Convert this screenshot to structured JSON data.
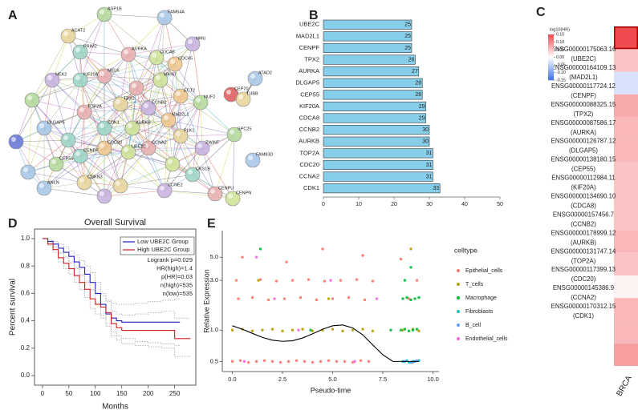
{
  "panel_labels": [
    "A",
    "B",
    "C",
    "D",
    "E"
  ],
  "network": {
    "nodes": [
      "ASP1B",
      "FAM64A",
      "ACAT2",
      "NMU",
      "PRIM2",
      "AURKA",
      "CDCA8",
      "CDC45",
      "CEP70",
      "ATAD2",
      "TUBB",
      "NEK2",
      "KIF20A",
      "MELK",
      "MKI67",
      "ECT2",
      "NUF2",
      "DLGAP5",
      "TPX2",
      "CCNB2",
      "CDK1",
      "TOP2A",
      "AURKB",
      "MAD2L1",
      "SPC25",
      "FAM83D",
      "PLK1",
      "ZWINT",
      "CENPF",
      "CCNA2",
      "UBE2C",
      "CDC20",
      "CEP55",
      "ANLN",
      "CDKN3",
      "CCNE2",
      "CKS1B",
      "CENPU",
      "CENPN"
    ]
  },
  "chart_data": [
    {
      "type": "bar",
      "orientation": "horizontal",
      "categories": [
        "UBE2C",
        "MAD2L1",
        "CENPF",
        "TPX2",
        "AURKA",
        "DLGAP5",
        "CEP55",
        "KIF20A",
        "CDCA8",
        "CCNB2",
        "AURKB",
        "TOP2A",
        "CDC20",
        "CCNA2",
        "CDK1"
      ],
      "values": [
        25,
        25,
        25,
        26,
        27,
        28,
        28,
        29,
        29,
        30,
        30,
        31,
        31,
        31,
        33
      ],
      "color": "#87ceeb",
      "xlim": [
        0,
        50
      ],
      "xticks": [
        0,
        10,
        20,
        30,
        40,
        50
      ]
    },
    {
      "type": "heatmap",
      "x": [
        "BRCA"
      ],
      "row_ids": [
        "ENSG00000175063.16",
        "ENSG00000164109.13",
        "ENSG00000117724.12",
        "ENSG00000088325.15",
        "ENSG00000087586.17",
        "ENSG00000126787.12",
        "ENSG00000138180.15",
        "ENSG00000112984.11",
        "ENSG00000134690.10",
        "ENSG00000157456.7",
        "ENSG00000178999.12",
        "ENSG00000131747.14",
        "ENSG00000117399.13",
        "ENSG00000145386.9",
        "ENSG00000170312.15"
      ],
      "categories": [
        "(UBE2C)",
        "(MAD2L1)",
        "(CENPF)",
        "(TPX2)",
        "(AURKA)",
        "(DLGAP5)",
        "(CEP55)",
        "(KIF20A)",
        "(CDCA8)",
        "(CCNB2)",
        "(AURKB)",
        "(TOP2A)",
        "(CDC20)",
        "(CCNA2)",
        "(CDK1)"
      ],
      "values": [
        0.15,
        0.05,
        -0.03,
        0.07,
        0.06,
        0.06,
        0.05,
        0.05,
        0.05,
        0.06,
        0.05,
        0.01,
        0.06,
        0.06,
        0.08
      ],
      "highlight_row": 0,
      "colorbar_label": "log10(HR)",
      "clim": [
        -0.15,
        0.15
      ],
      "cticks": [
        0.15,
        {
          "value": 0.1,
          "label": "0.10"
        },
        0.05,
        {
          "value": 0,
          "label": "0.00"
        },
        -0.05,
        {
          "value": -0.1,
          "label": "-0.10"
        },
        -0.15
      ],
      "low_color": "#3a6fe6",
      "mid_color": "#ffffff",
      "high_color": "#f04b4f"
    },
    {
      "type": "line",
      "step": true,
      "title": "Overall Survival",
      "xlabel": "Months",
      "ylabel": "Percent survival",
      "xlim": [
        -15,
        290
      ],
      "xticks": [
        0,
        50,
        100,
        150,
        200,
        250
      ],
      "ylim": [
        -0.07,
        1.07
      ],
      "yticks": [
        {
          "value": 0,
          "label": "0.0"
        },
        0.2,
        0.4,
        0.6,
        0.8,
        {
          "value": 1,
          "label": "1.0"
        }
      ],
      "legend": "upper right",
      "annotations": [
        "Logrank p=0.029",
        "HR(high)=1.4",
        "p(HR)=0.03",
        "n(high)=535",
        "n(low)=535"
      ],
      "series": [
        {
          "name": "Low UBE2C Group",
          "color": "#2020c0",
          "x": [
            0,
            10,
            20,
            30,
            40,
            50,
            60,
            70,
            80,
            90,
            100,
            110,
            120,
            130,
            140,
            150,
            175,
            200,
            225,
            250,
            260
          ],
          "values": [
            1,
            0.98,
            0.96,
            0.93,
            0.9,
            0.87,
            0.83,
            0.79,
            0.74,
            0.68,
            0.6,
            0.52,
            0.45,
            0.42,
            0.4,
            0.39,
            0.39,
            0.39,
            0.39,
            0.39,
            0.39
          ],
          "lower": [
            1,
            0.97,
            0.94,
            0.9,
            0.87,
            0.83,
            0.79,
            0.74,
            0.68,
            0.62,
            0.53,
            0.44,
            0.36,
            0.32,
            0.29,
            0.27,
            0.25,
            0.24,
            0.23,
            0.22,
            0.22
          ],
          "upper": [
            1,
            0.99,
            0.98,
            0.96,
            0.94,
            0.91,
            0.88,
            0.84,
            0.8,
            0.75,
            0.68,
            0.6,
            0.55,
            0.53,
            0.52,
            0.52,
            0.53,
            0.54,
            0.55,
            0.56,
            0.56
          ]
        },
        {
          "name": "High UBE2C Group",
          "color": "#d02020",
          "x": [
            0,
            10,
            20,
            30,
            40,
            50,
            60,
            70,
            80,
            90,
            100,
            110,
            120,
            130,
            140,
            150,
            175,
            200,
            225,
            250,
            280
          ],
          "values": [
            1,
            0.96,
            0.92,
            0.86,
            0.82,
            0.78,
            0.73,
            0.68,
            0.63,
            0.56,
            0.52,
            0.5,
            0.46,
            0.38,
            0.35,
            0.33,
            0.33,
            0.33,
            0.33,
            0.27,
            0.27
          ],
          "lower": [
            1,
            0.95,
            0.9,
            0.83,
            0.78,
            0.74,
            0.68,
            0.63,
            0.57,
            0.49,
            0.45,
            0.42,
            0.38,
            0.29,
            0.26,
            0.23,
            0.22,
            0.21,
            0.2,
            0.14,
            0.14
          ],
          "upper": [
            1,
            0.97,
            0.94,
            0.89,
            0.86,
            0.82,
            0.78,
            0.73,
            0.69,
            0.63,
            0.59,
            0.58,
            0.54,
            0.47,
            0.45,
            0.44,
            0.45,
            0.46,
            0.47,
            0.42,
            0.42
          ]
        }
      ]
    },
    {
      "type": "scatter",
      "xlabel": "Pseudo-time",
      "ylabel": "Relative Expression",
      "legend_title": "celltype",
      "log_y": true,
      "xlim": [
        -0.5,
        10.3
      ],
      "xticks": [
        {
          "value": 0,
          "label": "0.0"
        },
        2.5,
        {
          "value": 5,
          "label": "5.0"
        },
        7.5,
        {
          "value": 10,
          "label": "10.0"
        }
      ],
      "ylim": [
        0.4,
        9
      ],
      "yticks": [
        0.5,
        {
          "value": 1,
          "label": "1.0"
        },
        {
          "value": 3,
          "label": "3.0"
        },
        {
          "value": 5,
          "label": "5.0"
        }
      ],
      "series": [
        {
          "name": "Epithelial_cells",
          "color": "#F8766D",
          "x": [
            0,
            0.4,
            0.8,
            1.2,
            1.6,
            2,
            2.4,
            2.8,
            3.2,
            3.6,
            4,
            4.4,
            4.8,
            5.2,
            5.6,
            6,
            6.4,
            6.8,
            8.6,
            9,
            0.3,
            1,
            1.8,
            2.6,
            3.4,
            4.2,
            5,
            5.8,
            6.6,
            8.8,
            0.2,
            1.4,
            2.2,
            3,
            3.8,
            4.6,
            5.4,
            6.2,
            7,
            9.2,
            0.5,
            2.7,
            4.5,
            6.5,
            8.4
          ],
          "values": [
            0.5,
            0.51,
            0.49,
            0.5,
            0.51,
            0.5,
            0.49,
            0.5,
            0.51,
            0.5,
            0.49,
            0.5,
            0.51,
            0.5,
            0.5,
            0.49,
            0.51,
            0.5,
            0.5,
            0.49,
            2,
            2.05,
            1.95,
            2,
            2.05,
            1.95,
            2,
            2.05,
            1.95,
            2,
            3,
            3.05,
            2.95,
            3,
            3.05,
            2.95,
            3,
            3.05,
            2.95,
            3,
            5,
            4.5,
            6,
            5.2,
            4.8
          ]
        },
        {
          "name": "T_cells",
          "color": "#B79F00",
          "x": [
            0,
            0.5,
            1,
            1.5,
            2,
            2.5,
            3,
            3.5,
            4,
            4.5,
            5,
            5.5,
            6,
            6.5,
            7,
            8.5,
            9,
            9.3,
            1.3,
            4.8,
            8.9
          ],
          "values": [
            1,
            1.02,
            0.98,
            1,
            1.02,
            0.98,
            1,
            1.02,
            0.98,
            1,
            1.02,
            0.98,
            1,
            1.02,
            0.98,
            1,
            1.02,
            0.98,
            3,
            2,
            6
          ]
        },
        {
          "name": "Macrophage",
          "color": "#00BA38",
          "x": [
            8.4,
            8.6,
            8.8,
            9,
            9.2,
            8.5,
            8.7,
            8.9,
            9.1,
            9.3,
            1.4,
            3.9,
            8.6,
            8.9,
            7.9
          ],
          "values": [
            1,
            1.02,
            0.98,
            1,
            1.02,
            2,
            2.05,
            1.95,
            2,
            2.05,
            6,
            1,
            3,
            4,
            1
          ]
        },
        {
          "name": "Fibroblasts",
          "color": "#00BFC4",
          "x": [
            8.5,
            8.7,
            8.9,
            9.1,
            9.3,
            9,
            8.8
          ],
          "values": [
            0.5,
            0.51,
            0.49,
            0.5,
            0.51,
            0.5,
            0.49
          ]
        },
        {
          "name": "B_cell",
          "color": "#619CFF",
          "x": [
            8.6,
            8.9,
            9.2,
            9.1
          ],
          "values": [
            0.5,
            0.49,
            0.51,
            0.5
          ]
        },
        {
          "name": "Endothelial_cells",
          "color": "#F564E3",
          "x": [
            0.6,
            2.1,
            3.3,
            4.9,
            6.1,
            7.2,
            1.2
          ],
          "values": [
            0.5,
            2,
            1,
            3,
            0.5,
            2,
            5
          ]
        }
      ],
      "trend": {
        "color": "#000000",
        "x": [
          0,
          0.5,
          1,
          1.5,
          2,
          2.5,
          3,
          3.5,
          4,
          4.5,
          5,
          5.5,
          6,
          6.5,
          7,
          7.5,
          8,
          8.5,
          9,
          9.3
        ],
        "values": [
          1.1,
          1.02,
          0.93,
          0.85,
          0.8,
          0.78,
          0.79,
          0.84,
          0.92,
          1.02,
          1.1,
          1.12,
          1.05,
          0.9,
          0.72,
          0.58,
          0.5,
          0.5,
          0.5,
          0.5
        ]
      }
    }
  ]
}
